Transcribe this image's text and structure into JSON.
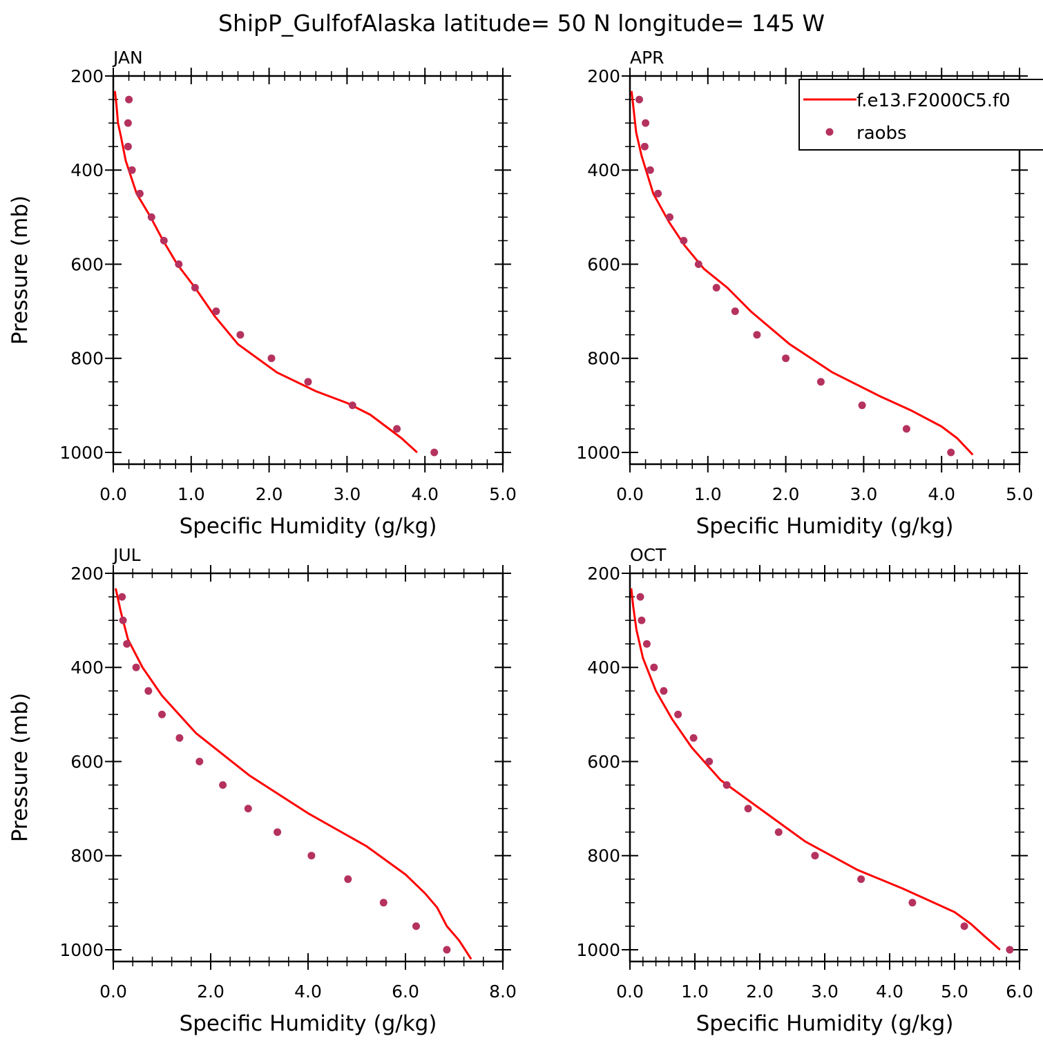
{
  "title": "ShipP_GulfofAlaska  latitude= 50 N longitude= 145 W",
  "legend": {
    "placement": "top-right of APR panel",
    "model_label": "f.e13.F2000C5.f0",
    "obs_label": "raobs",
    "model_color": "#ff0000",
    "obs_color": "#b5325e"
  },
  "chart_data": [
    {
      "type": "line",
      "panel": "JAN",
      "xlabel": "Specific Humidity (g/kg)",
      "ylabel": "Pressure (mb)",
      "xlim": [
        0,
        5
      ],
      "ylim": [
        1025,
        200
      ],
      "y_inverted": true,
      "xticks": [
        "0.0",
        "1.0",
        "2.0",
        "3.0",
        "4.0",
        "5.0"
      ],
      "yticks": [
        "200",
        "400",
        "600",
        "800",
        "1000"
      ],
      "series": [
        {
          "name": "f.e13.F2000C5.f0",
          "kind": "line",
          "points": [
            [
              0.02,
              232
            ],
            [
              0.04,
              260
            ],
            [
              0.06,
              300
            ],
            [
              0.1,
              330
            ],
            [
              0.16,
              380
            ],
            [
              0.3,
              450
            ],
            [
              0.48,
              500
            ],
            [
              0.64,
              550
            ],
            [
              0.82,
              600
            ],
            [
              1.05,
              650
            ],
            [
              1.3,
              710
            ],
            [
              1.6,
              770
            ],
            [
              2.1,
              830
            ],
            [
              2.6,
              870
            ],
            [
              3.0,
              895
            ],
            [
              3.3,
              920
            ],
            [
              3.5,
              945
            ],
            [
              3.7,
              970
            ],
            [
              3.9,
              1000
            ]
          ]
        },
        {
          "name": "raobs",
          "kind": "points",
          "points": [
            [
              0.2,
              250
            ],
            [
              0.19,
              300
            ],
            [
              0.19,
              350
            ],
            [
              0.24,
              400
            ],
            [
              0.34,
              450
            ],
            [
              0.49,
              500
            ],
            [
              0.65,
              550
            ],
            [
              0.84,
              600
            ],
            [
              1.05,
              650
            ],
            [
              1.32,
              700
            ],
            [
              1.63,
              750
            ],
            [
              2.03,
              800
            ],
            [
              2.5,
              850
            ],
            [
              3.07,
              900
            ],
            [
              3.64,
              950
            ],
            [
              4.12,
              1000
            ]
          ]
        }
      ]
    },
    {
      "type": "line",
      "panel": "APR",
      "xlabel": "Specific Humidity (g/kg)",
      "ylabel": "",
      "xlim": [
        0,
        5
      ],
      "ylim": [
        1025,
        200
      ],
      "y_inverted": true,
      "xticks": [
        "0.0",
        "1.0",
        "2.0",
        "3.0",
        "4.0",
        "5.0"
      ],
      "yticks": [
        "200",
        "400",
        "600",
        "800",
        "1000"
      ],
      "series": [
        {
          "name": "f.e13.F2000C5.f0",
          "kind": "line",
          "points": [
            [
              0.02,
              232
            ],
            [
              0.04,
              260
            ],
            [
              0.08,
              320
            ],
            [
              0.15,
              370
            ],
            [
              0.3,
              450
            ],
            [
              0.5,
              510
            ],
            [
              0.7,
              560
            ],
            [
              0.95,
              610
            ],
            [
              1.25,
              650
            ],
            [
              1.55,
              700
            ],
            [
              2.05,
              770
            ],
            [
              2.6,
              830
            ],
            [
              3.2,
              880
            ],
            [
              3.6,
              910
            ],
            [
              4.0,
              945
            ],
            [
              4.2,
              970
            ],
            [
              4.4,
              1005
            ]
          ]
        },
        {
          "name": "raobs",
          "kind": "points",
          "points": [
            [
              0.12,
              250
            ],
            [
              0.2,
              300
            ],
            [
              0.19,
              350
            ],
            [
              0.26,
              400
            ],
            [
              0.36,
              450
            ],
            [
              0.51,
              500
            ],
            [
              0.69,
              550
            ],
            [
              0.88,
              600
            ],
            [
              1.11,
              650
            ],
            [
              1.35,
              700
            ],
            [
              1.63,
              750
            ],
            [
              2.0,
              800
            ],
            [
              2.45,
              850
            ],
            [
              2.98,
              900
            ],
            [
              3.55,
              950
            ],
            [
              4.12,
              1000
            ]
          ]
        }
      ]
    },
    {
      "type": "line",
      "panel": "JUL",
      "xlabel": "Specific Humidity (g/kg)",
      "ylabel": "Pressure (mb)",
      "xlim": [
        0,
        8
      ],
      "ylim": [
        1025,
        200
      ],
      "y_inverted": true,
      "xticks": [
        "0.0",
        "2.0",
        "4.0",
        "6.0",
        "8.0"
      ],
      "yticks": [
        "200",
        "400",
        "600",
        "800",
        "1000"
      ],
      "series": [
        {
          "name": "f.e13.F2000C5.f0",
          "kind": "line",
          "points": [
            [
              0.05,
              232
            ],
            [
              0.15,
              280
            ],
            [
              0.3,
              340
            ],
            [
              0.6,
              400
            ],
            [
              1.0,
              460
            ],
            [
              1.7,
              540
            ],
            [
              2.8,
              630
            ],
            [
              4.0,
              710
            ],
            [
              5.2,
              780
            ],
            [
              6.0,
              840
            ],
            [
              6.4,
              880
            ],
            [
              6.65,
              910
            ],
            [
              6.85,
              950
            ],
            [
              7.1,
              980
            ],
            [
              7.35,
              1020
            ]
          ]
        },
        {
          "name": "raobs",
          "kind": "points",
          "points": [
            [
              0.18,
              250
            ],
            [
              0.2,
              300
            ],
            [
              0.28,
              350
            ],
            [
              0.47,
              400
            ],
            [
              0.72,
              450
            ],
            [
              1.0,
              500
            ],
            [
              1.36,
              550
            ],
            [
              1.77,
              600
            ],
            [
              2.25,
              650
            ],
            [
              2.77,
              700
            ],
            [
              3.37,
              750
            ],
            [
              4.07,
              800
            ],
            [
              4.82,
              850
            ],
            [
              5.55,
              900
            ],
            [
              6.22,
              950
            ],
            [
              6.85,
              1000
            ]
          ]
        }
      ]
    },
    {
      "type": "line",
      "panel": "OCT",
      "xlabel": "Specific Humidity (g/kg)",
      "ylabel": "",
      "xlim": [
        0,
        6
      ],
      "ylim": [
        1025,
        200
      ],
      "y_inverted": true,
      "xticks": [
        "0.0",
        "1.0",
        "2.0",
        "3.0",
        "4.0",
        "5.0",
        "6.0"
      ],
      "yticks": [
        "200",
        "400",
        "600",
        "800",
        "1000"
      ],
      "series": [
        {
          "name": "f.e13.F2000C5.f0",
          "kind": "line",
          "points": [
            [
              0.02,
              232
            ],
            [
              0.05,
              270
            ],
            [
              0.1,
              320
            ],
            [
              0.2,
              380
            ],
            [
              0.4,
              450
            ],
            [
              0.65,
              510
            ],
            [
              0.95,
              570
            ],
            [
              1.4,
              640
            ],
            [
              2.0,
              700
            ],
            [
              2.7,
              770
            ],
            [
              3.5,
              830
            ],
            [
              4.2,
              870
            ],
            [
              4.6,
              895
            ],
            [
              5.0,
              920
            ],
            [
              5.25,
              945
            ],
            [
              5.45,
              970
            ],
            [
              5.7,
              1000
            ]
          ]
        },
        {
          "name": "raobs",
          "kind": "points",
          "points": [
            [
              0.16,
              250
            ],
            [
              0.18,
              300
            ],
            [
              0.26,
              350
            ],
            [
              0.37,
              400
            ],
            [
              0.52,
              450
            ],
            [
              0.74,
              500
            ],
            [
              0.98,
              550
            ],
            [
              1.22,
              600
            ],
            [
              1.49,
              650
            ],
            [
              1.82,
              700
            ],
            [
              2.29,
              750
            ],
            [
              2.85,
              800
            ],
            [
              3.56,
              850
            ],
            [
              4.35,
              900
            ],
            [
              5.15,
              950
            ],
            [
              5.85,
              1000
            ]
          ]
        }
      ]
    }
  ]
}
